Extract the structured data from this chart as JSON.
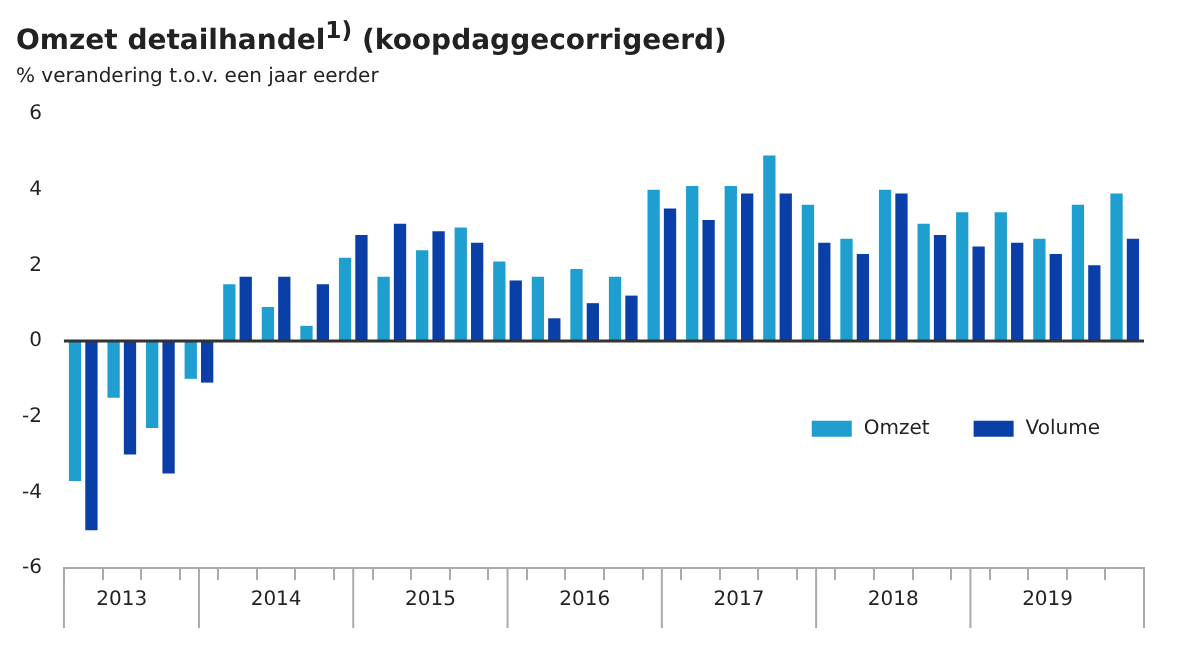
{
  "chart_data": {
    "type": "bar",
    "title": "Omzet detailhandel$^{1)}$ (koopdaggecorrigeerd)",
    "subtitle": "% verandering t.o.v. een jaar eerder",
    "categories": [
      null,
      "2013",
      null,
      null,
      null,
      "2014",
      null,
      null,
      null,
      "2015",
      null,
      null,
      null,
      "2016",
      null,
      null,
      null,
      "2017",
      null,
      null,
      null,
      "2018",
      null,
      null,
      null,
      "2019",
      null,
      null
    ],
    "series": [
      {
        "name": "Omzet",
        "color": "#1e9fcf",
        "values": [
          -3.7,
          -1.5,
          -2.3,
          -1.0,
          1.5,
          0.9,
          0.4,
          2.2,
          1.7,
          2.4,
          3.0,
          2.1,
          1.7,
          1.9,
          1.7,
          4.0,
          4.1,
          4.1,
          4.9,
          3.6,
          2.7,
          4.0,
          3.1,
          3.4,
          3.4,
          2.7,
          3.6,
          3.9
        ]
      },
      {
        "name": "Volume",
        "color": "#0b3fa8",
        "values": [
          -5.0,
          -3.0,
          -3.5,
          -1.1,
          1.7,
          1.7,
          1.5,
          2.8,
          3.1,
          2.9,
          2.6,
          1.6,
          0.6,
          1.0,
          1.2,
          3.5,
          3.2,
          3.9,
          3.9,
          2.6,
          2.3,
          3.9,
          2.8,
          2.5,
          2.6,
          2.3,
          2.0,
          2.7
        ]
      }
    ],
    "ylim": [
      -6,
      6
    ],
    "yticks": [
      -6,
      -4,
      -2,
      0,
      2,
      4,
      6
    ],
    "legend": "right"
  }
}
